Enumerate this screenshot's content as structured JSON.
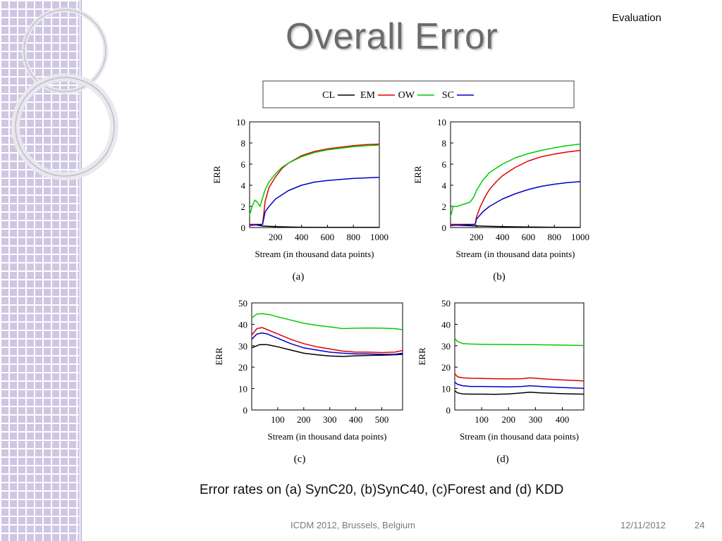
{
  "slide": {
    "section": "Evaluation",
    "title": "Overall Error",
    "caption": "Error rates on (a) SynC20, (b)SynC40, (c)Forest and (d) KDD",
    "footer": {
      "venue": "ICDM 2012, Brussels, Belgium",
      "date": "12/11/2012",
      "page": "24"
    }
  },
  "colors": {
    "CL": "#000000",
    "EM": "#e00000",
    "OW": "#00cc00",
    "SC": "#0000c8"
  },
  "legend": [
    "CL",
    "EM",
    "OW",
    "SC"
  ],
  "chart_data": [
    {
      "type": "line",
      "label": "(a)",
      "xlabel": "Stream (in thousand data points)",
      "ylabel": "ERR",
      "xlim": [
        0,
        1000
      ],
      "ylim": [
        0,
        10
      ],
      "xticks": [
        200,
        400,
        600,
        800,
        1000
      ],
      "yticks": [
        0,
        2,
        4,
        6,
        8,
        10
      ],
      "series": [
        {
          "name": "CL",
          "x": [
            0,
            50,
            100,
            200,
            400,
            600,
            800,
            1000
          ],
          "y": [
            0.25,
            0.25,
            0.15,
            0.08,
            0.03,
            0.02,
            0.02,
            0.02
          ]
        },
        {
          "name": "EM",
          "x": [
            0,
            50,
            100,
            120,
            150,
            200,
            250,
            300,
            400,
            500,
            600,
            700,
            800,
            900,
            1000
          ],
          "y": [
            0.3,
            0.3,
            0.3,
            2.5,
            3.8,
            4.8,
            5.6,
            6.1,
            6.8,
            7.2,
            7.45,
            7.6,
            7.75,
            7.85,
            7.9
          ]
        },
        {
          "name": "OW",
          "x": [
            0,
            20,
            40,
            60,
            80,
            100,
            120,
            150,
            200,
            250,
            300,
            400,
            500,
            600,
            700,
            800,
            900,
            1000
          ],
          "y": [
            1.2,
            2.0,
            2.6,
            2.4,
            2.0,
            2.8,
            3.6,
            4.3,
            5.1,
            5.7,
            6.1,
            6.7,
            7.1,
            7.35,
            7.5,
            7.65,
            7.75,
            7.8
          ]
        },
        {
          "name": "SC",
          "x": [
            0,
            50,
            100,
            120,
            150,
            200,
            300,
            400,
            500,
            600,
            700,
            800,
            900,
            1000
          ],
          "y": [
            0.2,
            0.25,
            0.3,
            1.5,
            2.0,
            2.7,
            3.5,
            4.0,
            4.3,
            4.45,
            4.55,
            4.65,
            4.7,
            4.75
          ]
        }
      ]
    },
    {
      "type": "line",
      "label": "(b)",
      "xlabel": "Stream (in thousand data points)",
      "ylabel": "ERR",
      "xlim": [
        0,
        1000
      ],
      "ylim": [
        0,
        10
      ],
      "xticks": [
        200,
        400,
        600,
        800,
        1000
      ],
      "yticks": [
        0,
        2,
        4,
        6,
        8,
        10
      ],
      "series": [
        {
          "name": "CL",
          "x": [
            0,
            100,
            200,
            400,
            600,
            800,
            1000
          ],
          "y": [
            0.25,
            0.2,
            0.15,
            0.08,
            0.05,
            0.03,
            0.02
          ]
        },
        {
          "name": "EM",
          "x": [
            0,
            100,
            190,
            200,
            230,
            270,
            300,
            350,
            400,
            500,
            600,
            700,
            800,
            900,
            1000
          ],
          "y": [
            0.3,
            0.3,
            0.3,
            1.0,
            2.0,
            3.0,
            3.6,
            4.3,
            4.9,
            5.7,
            6.3,
            6.7,
            6.95,
            7.15,
            7.3
          ]
        },
        {
          "name": "OW",
          "x": [
            0,
            20,
            50,
            100,
            150,
            180,
            200,
            250,
            300,
            400,
            500,
            600,
            700,
            800,
            900,
            1000
          ],
          "y": [
            1.0,
            2.0,
            2.0,
            2.2,
            2.4,
            2.9,
            3.5,
            4.5,
            5.2,
            6.0,
            6.6,
            7.0,
            7.3,
            7.55,
            7.75,
            7.9
          ]
        },
        {
          "name": "SC",
          "x": [
            0,
            100,
            190,
            200,
            250,
            300,
            400,
            500,
            600,
            700,
            800,
            900,
            1000
          ],
          "y": [
            0.2,
            0.25,
            0.3,
            0.8,
            1.5,
            2.0,
            2.7,
            3.2,
            3.6,
            3.9,
            4.1,
            4.25,
            4.35
          ]
        }
      ]
    },
    {
      "type": "line",
      "label": "(c)",
      "xlabel": "Stream (in thousand data points)",
      "ylabel": "ERR",
      "xlim": [
        0,
        580
      ],
      "ylim": [
        0,
        50
      ],
      "xticks": [
        100,
        200,
        300,
        400,
        500
      ],
      "yticks": [
        0,
        10,
        20,
        30,
        40,
        50
      ],
      "series": [
        {
          "name": "CL",
          "x": [
            0,
            30,
            60,
            100,
            150,
            200,
            250,
            300,
            350,
            400,
            450,
            500,
            550,
            580
          ],
          "y": [
            29,
            30.5,
            30.5,
            29.5,
            28,
            26.5,
            25.8,
            25.2,
            25,
            25.3,
            25.5,
            25.6,
            25.8,
            26
          ]
        },
        {
          "name": "EM",
          "x": [
            0,
            20,
            40,
            60,
            100,
            150,
            200,
            250,
            300,
            350,
            400,
            450,
            500,
            550,
            580
          ],
          "y": [
            35,
            38,
            38.5,
            37.5,
            35.5,
            33,
            31,
            29.5,
            28.5,
            27.5,
            27,
            27,
            26.8,
            27,
            27.8
          ]
        },
        {
          "name": "OW",
          "x": [
            0,
            20,
            40,
            70,
            100,
            150,
            200,
            250,
            300,
            350,
            400,
            450,
            500,
            550,
            580
          ],
          "y": [
            43,
            44.8,
            45,
            44.5,
            43.5,
            42,
            40.5,
            39.5,
            38.8,
            38,
            38.2,
            38.3,
            38.2,
            38,
            37.5
          ]
        },
        {
          "name": "SC",
          "x": [
            0,
            20,
            40,
            60,
            100,
            150,
            200,
            250,
            300,
            350,
            400,
            450,
            500,
            550,
            580
          ],
          "y": [
            33,
            35.5,
            36,
            35.5,
            33.5,
            31,
            29,
            28,
            27,
            26.5,
            26.2,
            26.2,
            26,
            26,
            26.5
          ]
        }
      ]
    },
    {
      "type": "line",
      "label": "(d)",
      "xlabel": "Stream (in thousand data points)",
      "ylabel": "ERR",
      "xlim": [
        0,
        480
      ],
      "ylim": [
        0,
        50
      ],
      "xticks": [
        100,
        200,
        300,
        400
      ],
      "yticks": [
        0,
        10,
        20,
        30,
        40,
        50
      ],
      "series": [
        {
          "name": "CL",
          "x": [
            0,
            10,
            30,
            60,
            100,
            150,
            200,
            250,
            280,
            320,
            360,
            400,
            440,
            480
          ],
          "y": [
            9,
            8,
            7.5,
            7.4,
            7.4,
            7.3,
            7.5,
            8,
            8.3,
            8,
            7.8,
            7.6,
            7.5,
            7.4
          ]
        },
        {
          "name": "EM",
          "x": [
            0,
            10,
            30,
            60,
            100,
            150,
            200,
            250,
            280,
            320,
            360,
            400,
            440,
            480
          ],
          "y": [
            17,
            15.5,
            15,
            14.8,
            14.7,
            14.6,
            14.5,
            14.6,
            15,
            14.6,
            14.3,
            14,
            13.8,
            13.6
          ]
        },
        {
          "name": "OW",
          "x": [
            0,
            10,
            30,
            60,
            100,
            150,
            200,
            250,
            300,
            350,
            400,
            450,
            480
          ],
          "y": [
            33.5,
            32,
            31,
            30.8,
            30.7,
            30.6,
            30.6,
            30.5,
            30.5,
            30.4,
            30.3,
            30.2,
            30.1
          ]
        },
        {
          "name": "SC",
          "x": [
            0,
            10,
            30,
            60,
            100,
            150,
            200,
            250,
            280,
            320,
            360,
            400,
            440,
            480
          ],
          "y": [
            13,
            12,
            11.3,
            11,
            11,
            10.9,
            10.8,
            11,
            11.3,
            11,
            10.7,
            10.5,
            10.3,
            10.1
          ]
        }
      ]
    }
  ]
}
